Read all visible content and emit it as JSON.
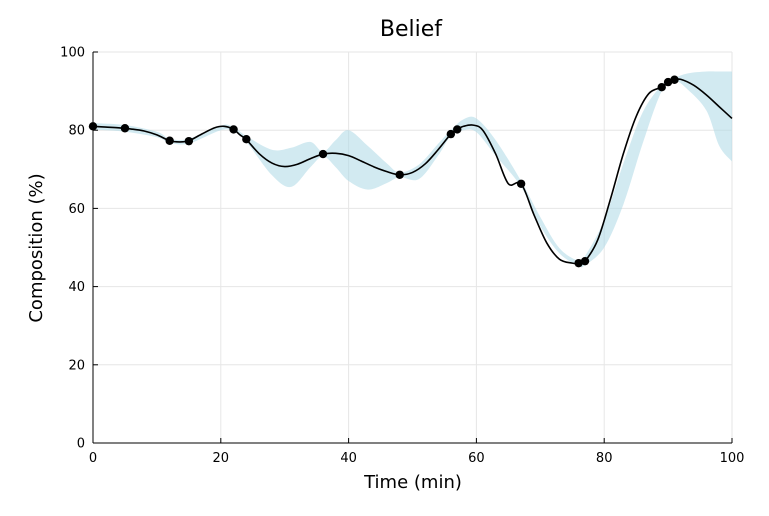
{
  "chart_data": {
    "type": "line",
    "title": "Belief",
    "xlabel": "Time (min)",
    "ylabel": "Composition (%)",
    "xlim": [
      0,
      100
    ],
    "ylim": [
      0,
      100
    ],
    "xticks": [
      "0",
      "20",
      "40",
      "60",
      "80",
      "100"
    ],
    "yticks": [
      "0",
      "20",
      "40",
      "60",
      "80",
      "100"
    ],
    "grid": true,
    "legend": "none",
    "colors": {
      "band": "#add8e6",
      "line": "#000000",
      "points": "#000000",
      "grid": "#e6e6e6"
    },
    "mean_curve": {
      "x": [
        0,
        2,
        4,
        6,
        8,
        10,
        12,
        13.5,
        15,
        17,
        19,
        20.5,
        22,
        23,
        24,
        26,
        28,
        30,
        32,
        34,
        36,
        38,
        40,
        42,
        44,
        46,
        48,
        50,
        52,
        54,
        56,
        57,
        58,
        59.5,
        61,
        63,
        65,
        67,
        69,
        71,
        73,
        75,
        76,
        77,
        79,
        81,
        83,
        85,
        87,
        89,
        90,
        91,
        92,
        94,
        96,
        98,
        100
      ],
      "y": [
        81,
        80.8,
        80.6,
        80.3,
        79.8,
        78.8,
        77.3,
        77.0,
        77.3,
        79.0,
        80.6,
        81.0,
        80.2,
        78.8,
        77.6,
        74.0,
        71.6,
        70.7,
        71.3,
        72.7,
        73.9,
        74.1,
        73.5,
        72.1,
        70.6,
        69.4,
        68.6,
        69.2,
        71.4,
        75.0,
        79.0,
        80.2,
        81.0,
        81.3,
        80.0,
        74.0,
        66.3,
        66.3,
        58.4,
        51.2,
        47.0,
        46.0,
        45.9,
        46.5,
        52.0,
        62.5,
        74.0,
        83.5,
        89.4,
        91.0,
        92.2,
        92.9,
        93.0,
        91.5,
        89.0,
        86.0,
        83.0
      ]
    },
    "band": {
      "x": [
        0,
        5,
        10,
        12,
        15,
        20,
        22,
        24,
        28,
        31,
        34,
        36,
        38,
        40,
        43,
        46,
        48,
        51,
        54,
        56,
        58,
        60,
        63,
        67,
        70,
        73,
        76,
        77,
        80,
        83,
        86,
        89,
        91,
        93,
        96,
        98,
        100
      ],
      "upper": [
        81.8,
        81.3,
        79.6,
        77.8,
        77.8,
        81.2,
        80.8,
        78.5,
        75.0,
        75.5,
        77.0,
        74.5,
        77.5,
        80.0,
        76.0,
        71.5,
        69.2,
        71.2,
        76.5,
        80.0,
        82.8,
        83.0,
        77.5,
        67.0,
        57.8,
        49.8,
        46.6,
        47.8,
        57.0,
        71.5,
        84.5,
        91.5,
        93.3,
        94.5,
        95.0,
        95.0,
        95.0
      ],
      "lower": [
        80.2,
        79.6,
        78.2,
        76.8,
        76.6,
        80.0,
        79.6,
        77.0,
        68.5,
        65.5,
        70.5,
        73.3,
        70.5,
        67.0,
        64.8,
        66.5,
        68.0,
        67.5,
        73.5,
        78.5,
        80.0,
        79.5,
        73.5,
        65.5,
        55.5,
        48.5,
        45.3,
        45.5,
        50.0,
        61.0,
        76.5,
        90.0,
        92.6,
        90.5,
        85.0,
        76.0,
        72.0
      ]
    },
    "observations": {
      "x": [
        0,
        5,
        12,
        15,
        22,
        24,
        36,
        48,
        56,
        57,
        67,
        76,
        77,
        89,
        90,
        91
      ],
      "y": [
        81.0,
        80.5,
        77.3,
        77.2,
        80.2,
        77.7,
        73.9,
        68.6,
        79.0,
        80.2,
        66.3,
        46.0,
        46.5,
        91.0,
        92.3,
        92.9
      ]
    }
  }
}
